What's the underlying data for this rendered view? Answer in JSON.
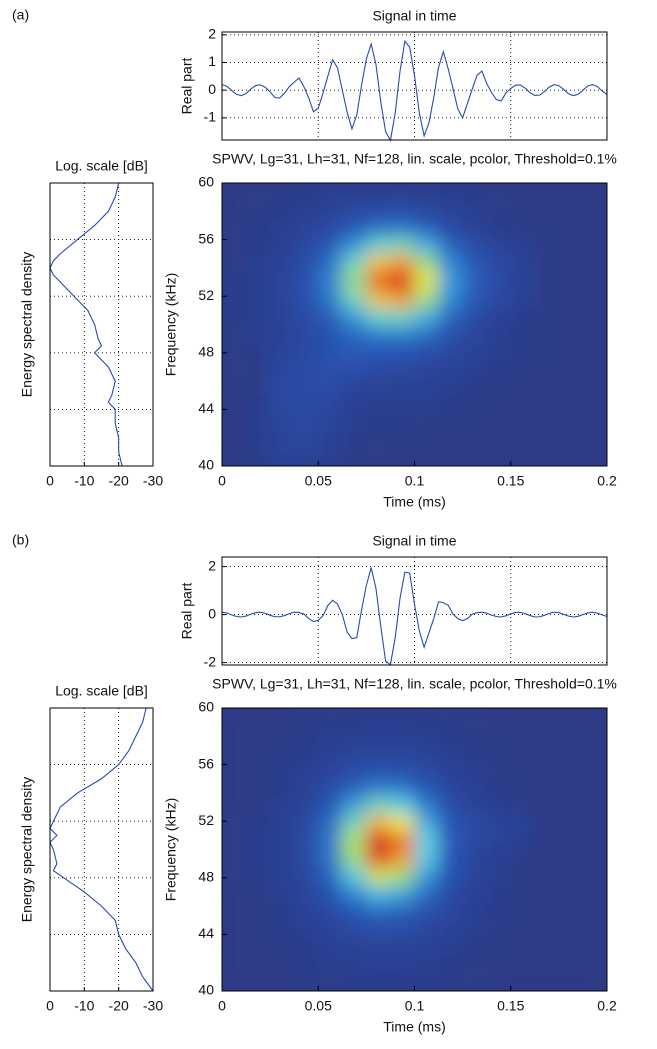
{
  "panel_labels": [
    "(a)",
    "(b)"
  ],
  "chart_data": [
    {
      "type": "line",
      "title": "Signal in time",
      "ylabel": "Real part",
      "color": "#2b4ab0",
      "grid": true,
      "xlim": [
        0,
        0.2
      ],
      "ylim": [
        -1.8,
        2.1
      ],
      "yticks": [
        -1,
        0,
        1,
        2
      ],
      "x": [
        0,
        0.0025,
        0.005,
        0.0075,
        0.01,
        0.0125,
        0.015,
        0.0175,
        0.02,
        0.0225,
        0.025,
        0.0275,
        0.03,
        0.0325,
        0.035,
        0.0375,
        0.04,
        0.0425,
        0.045,
        0.0475,
        0.05,
        0.0525,
        0.055,
        0.0575,
        0.06,
        0.0625,
        0.065,
        0.0675,
        0.07,
        0.0725,
        0.075,
        0.0775,
        0.08,
        0.0825,
        0.085,
        0.0875,
        0.09,
        0.0925,
        0.095,
        0.0975,
        0.1,
        0.1025,
        0.105,
        0.1075,
        0.11,
        0.1125,
        0.115,
        0.1175,
        0.12,
        0.1225,
        0.125,
        0.1275,
        0.13,
        0.1325,
        0.135,
        0.1375,
        0.14,
        0.1425,
        0.145,
        0.1475,
        0.15,
        0.1525,
        0.155,
        0.1575,
        0.16,
        0.1625,
        0.165,
        0.1675,
        0.17,
        0.1725,
        0.175,
        0.1775,
        0.18,
        0.1825,
        0.185,
        0.1875,
        0.19,
        0.1925,
        0.195,
        0.1975,
        0.2
      ],
      "values": [
        0.2,
        0.14,
        -0.01,
        -0.15,
        -0.2,
        -0.12,
        0.04,
        0.17,
        0.19,
        0.1,
        -0.06,
        -0.27,
        -0.28,
        -0.11,
        0.13,
        0.29,
        0.44,
        0.13,
        -0.27,
        -0.78,
        -0.65,
        -0.1,
        0.51,
        1.1,
        0.8,
        0,
        -0.8,
        -1.4,
        -0.9,
        0.18,
        1.13,
        1.67,
        0.92,
        -0.43,
        -1.5,
        -1.81,
        -0.82,
        0.7,
        1.77,
        1.55,
        0.53,
        -0.82,
        -1.65,
        -1.18,
        -0.27,
        0.83,
        1.39,
        0.77,
        0.06,
        -0.68,
        -1,
        -0.48,
        0.04,
        0.54,
        0.69,
        0.24,
        -0.08,
        -0.34,
        -0.39,
        -0.1,
        0.06,
        0.18,
        0.19,
        0.07,
        -0.09,
        -0.19,
        -0.18,
        -0.05,
        0.11,
        0.2,
        0.16,
        0.03,
        -0.13,
        -0.2,
        -0.15,
        0,
        0.15,
        0.2,
        0.13,
        -0.03,
        -0.16
      ]
    },
    {
      "type": "line",
      "title": "Log. scale [dB]",
      "ylabel": "Energy spectral density",
      "color": "#2b4ab0",
      "grid": true,
      "xlim": [
        0,
        -30
      ],
      "xticks": [
        0,
        -10,
        -20,
        -30
      ],
      "ylim": [
        40,
        60
      ],
      "y": [
        60,
        59,
        58,
        57,
        56,
        55,
        54.5,
        54,
        53.5,
        53,
        52,
        51,
        50,
        49,
        48.5,
        48,
        47.5,
        47,
        46,
        45,
        44.5,
        44,
        43,
        42,
        41,
        40
      ],
      "values": [
        -20,
        -19,
        -17,
        -13,
        -8,
        -3,
        -1,
        0,
        -1,
        -3,
        -7,
        -11,
        -13,
        -14,
        -15,
        -13,
        -15,
        -17,
        -19,
        -18,
        -17,
        -19,
        -19,
        -20,
        -20,
        -21
      ]
    },
    {
      "type": "heatmap",
      "title": "SPWV, Lg=31, Lh=31, Nf=128, lin. scale, pcolor, Threshold=0.1%",
      "xlabel": "Time (ms)",
      "ylabel": "Frequency (kHz)",
      "colormap": "jet",
      "grid": false,
      "xlim": [
        0,
        0.2
      ],
      "xticks": [
        0,
        0.05,
        0.1,
        0.15,
        0.2
      ],
      "ylim": [
        40,
        60
      ],
      "yticks": [
        40,
        44,
        48,
        52,
        56,
        60
      ],
      "xbins": [
        0,
        0.0125,
        0.025,
        0.0375,
        0.05,
        0.0625,
        0.075,
        0.0875,
        0.1,
        0.1125,
        0.125,
        0.1375,
        0.15,
        0.1625,
        0.175,
        0.1875,
        0.2
      ],
      "ybins": [
        40,
        41.25,
        42.5,
        43.75,
        45,
        46.25,
        47.5,
        48.75,
        50,
        51.25,
        52.5,
        53.75,
        55,
        56.25,
        57.5,
        58.75,
        60
      ],
      "z": [
        [
          0,
          0.02,
          0.06,
          0.07,
          0.04,
          0.01,
          0.01,
          0,
          0,
          0,
          0,
          0,
          0,
          0,
          0,
          0
        ],
        [
          0,
          0.02,
          0.07,
          0.08,
          0.05,
          0.02,
          0.01,
          0.01,
          0.01,
          0,
          0,
          0,
          0,
          0,
          0,
          0
        ],
        [
          0,
          0.02,
          0.08,
          0.09,
          0.07,
          0.03,
          0.02,
          0.02,
          0.01,
          0.01,
          0.01,
          0,
          0,
          0,
          0,
          0
        ],
        [
          0,
          0.02,
          0.09,
          0.1,
          0.09,
          0.04,
          0.03,
          0.03,
          0.03,
          0.02,
          0.01,
          0.01,
          0,
          0,
          0,
          0
        ],
        [
          0,
          0.01,
          0.1,
          0.11,
          0.12,
          0.07,
          0.06,
          0.05,
          0.05,
          0.03,
          0.02,
          0.01,
          0.01,
          0,
          0,
          0
        ],
        [
          0.01,
          0.01,
          0.08,
          0.11,
          0.13,
          0.14,
          0.09,
          0.09,
          0.07,
          0.05,
          0.04,
          0.02,
          0.01,
          0.01,
          0,
          0
        ],
        [
          0.01,
          0.02,
          0.07,
          0.1,
          0.15,
          0.18,
          0.17,
          0.16,
          0.13,
          0.09,
          0.05,
          0.03,
          0.02,
          0.01,
          0,
          0
        ],
        [
          0.01,
          0.03,
          0.05,
          0.09,
          0.15,
          0.23,
          0.3,
          0.32,
          0.25,
          0.14,
          0.08,
          0.04,
          0.02,
          0.01,
          0,
          0
        ],
        [
          0.02,
          0.03,
          0.06,
          0.11,
          0.2,
          0.39,
          0.57,
          0.6,
          0.45,
          0.24,
          0.11,
          0.05,
          0.02,
          0.01,
          0,
          0
        ],
        [
          0.02,
          0.03,
          0.06,
          0.13,
          0.28,
          0.59,
          0.91,
          0.98,
          0.71,
          0.34,
          0.18,
          0.1,
          0.05,
          0.01,
          0,
          0
        ],
        [
          0.02,
          0.03,
          0.07,
          0.14,
          0.31,
          0.68,
          1.07,
          1.17,
          0.83,
          0.39,
          0.2,
          0.11,
          0.05,
          0.01,
          0,
          0
        ],
        [
          0.01,
          0.03,
          0.05,
          0.11,
          0.26,
          0.58,
          0.91,
          0.98,
          0.7,
          0.33,
          0.18,
          0.1,
          0.05,
          0.01,
          0,
          0
        ],
        [
          0.01,
          0.02,
          0.04,
          0.09,
          0.18,
          0.37,
          0.56,
          0.61,
          0.44,
          0.21,
          0.12,
          0.06,
          0.03,
          0.01,
          0,
          0
        ],
        [
          0.01,
          0.02,
          0.03,
          0.06,
          0.1,
          0.17,
          0.25,
          0.27,
          0.2,
          0.11,
          0.05,
          0.02,
          0.01,
          0.01,
          0,
          0
        ],
        [
          0,
          0.01,
          0.02,
          0.03,
          0.05,
          0.09,
          0.1,
          0.11,
          0.08,
          0.05,
          0.03,
          0.01,
          0.01,
          0,
          0,
          0
        ],
        [
          0,
          0.01,
          0.01,
          0.02,
          0.03,
          0.04,
          0.04,
          0.04,
          0.03,
          0.02,
          0.02,
          0.01,
          0,
          0,
          0,
          0
        ]
      ]
    },
    {
      "type": "line",
      "title": "Signal in time",
      "ylabel": "Real part",
      "color": "#2b4ab0",
      "grid": true,
      "xlim": [
        0,
        0.2
      ],
      "ylim": [
        -2.1,
        2.4
      ],
      "yticks": [
        -2,
        0,
        2
      ],
      "x": [
        0,
        0.0025,
        0.005,
        0.0075,
        0.01,
        0.0125,
        0.015,
        0.0175,
        0.02,
        0.0225,
        0.025,
        0.0275,
        0.03,
        0.0325,
        0.035,
        0.0375,
        0.04,
        0.0425,
        0.045,
        0.0475,
        0.05,
        0.0525,
        0.055,
        0.0575,
        0.06,
        0.0625,
        0.065,
        0.0675,
        0.07,
        0.0725,
        0.075,
        0.0775,
        0.08,
        0.0825,
        0.085,
        0.0875,
        0.09,
        0.0925,
        0.095,
        0.0975,
        0.1,
        0.1025,
        0.105,
        0.1075,
        0.11,
        0.1125,
        0.115,
        0.1175,
        0.12,
        0.1225,
        0.125,
        0.1275,
        0.13,
        0.1325,
        0.135,
        0.1375,
        0.14,
        0.1425,
        0.145,
        0.1475,
        0.15,
        0.1525,
        0.155,
        0.1575,
        0.16,
        0.1625,
        0.165,
        0.1675,
        0.17,
        0.1725,
        0.175,
        0.1775,
        0.18,
        0.1825,
        0.185,
        0.1875,
        0.19,
        0.1925,
        0.195,
        0.1975,
        0.2
      ],
      "values": [
        0.1,
        0.07,
        -0.01,
        -0.08,
        -0.1,
        -0.06,
        0.02,
        0.08,
        0.1,
        0.05,
        -0.03,
        -0.09,
        -0.09,
        -0.04,
        0.04,
        0.1,
        0.09,
        0.03,
        -0.16,
        -0.29,
        -0.24,
        -0.04,
        0.38,
        0.6,
        0.44,
        0,
        -0.73,
        -1,
        -0.96,
        0.2,
        1.22,
        1.96,
        1.08,
        -0.5,
        -1.94,
        -2.09,
        -0.95,
        0.7,
        1.77,
        1.73,
        0.43,
        -0.67,
        -1.36,
        -0.76,
        -0.17,
        0.53,
        0.5,
        0.39,
        0.03,
        -0.17,
        -0.25,
        -0.17,
        0.02,
        0.08,
        0.1,
        0.06,
        -0.02,
        -0.08,
        -0.1,
        -0.05,
        0.03,
        0.09,
        0.09,
        0.04,
        -0.04,
        -0.1,
        -0.09,
        -0.03,
        0.05,
        0.1,
        0.08,
        0.01,
        -0.06,
        -0.1,
        -0.07,
        0,
        0.07,
        0.1,
        0.06,
        -0.01,
        -0.08
      ]
    },
    {
      "type": "line",
      "title": "Log. scale [dB]",
      "ylabel": "Energy spectral density",
      "color": "#2b4ab0",
      "grid": true,
      "xlim": [
        0,
        -30
      ],
      "xticks": [
        0,
        -10,
        -20,
        -30
      ],
      "ylim": [
        40,
        60
      ],
      "y": [
        60,
        59,
        58,
        57,
        56,
        55,
        54,
        53,
        52,
        51.5,
        51,
        50.5,
        50,
        49,
        48.5,
        48,
        47,
        46,
        45,
        44,
        43,
        42,
        41,
        40
      ],
      "values": [
        -28,
        -27,
        -25,
        -23,
        -20,
        -15,
        -8,
        -3,
        -1,
        0,
        -2,
        0,
        -1,
        -2,
        -1,
        -4,
        -10,
        -15,
        -19,
        -20,
        -22,
        -25,
        -27,
        -30
      ]
    },
    {
      "type": "heatmap",
      "title": "SPWV, Lg=31, Lh=31, Nf=128, lin. scale, pcolor, Threshold=0.1%",
      "xlabel": "Time (ms)",
      "ylabel": "Frequency (kHz)",
      "colormap": "jet",
      "grid": false,
      "xlim": [
        0,
        0.2
      ],
      "xticks": [
        0,
        0.05,
        0.1,
        0.15,
        0.2
      ],
      "ylim": [
        40,
        60
      ],
      "yticks": [
        40,
        44,
        48,
        52,
        56,
        60
      ],
      "xbins": [
        0,
        0.0125,
        0.025,
        0.0375,
        0.05,
        0.0625,
        0.075,
        0.0875,
        0.1,
        0.1125,
        0.125,
        0.1375,
        0.15,
        0.1625,
        0.175,
        0.1875,
        0.2
      ],
      "ybins": [
        40,
        41.25,
        42.5,
        43.75,
        45,
        46.25,
        47.5,
        48.75,
        50,
        51.25,
        52.5,
        53.75,
        55,
        56.25,
        57.5,
        58.75,
        60
      ],
      "z": [
        [
          0,
          0,
          0,
          0.01,
          0.01,
          0.02,
          0.02,
          0.02,
          0.02,
          0.01,
          0.01,
          0,
          0,
          0,
          0,
          0
        ],
        [
          0,
          0,
          0.01,
          0.02,
          0.03,
          0.03,
          0.04,
          0.04,
          0.03,
          0.02,
          0.01,
          0.01,
          0,
          0,
          0,
          0
        ],
        [
          0,
          0.01,
          0.01,
          0.02,
          0.04,
          0.05,
          0.06,
          0.06,
          0.05,
          0.03,
          0.02,
          0.01,
          0,
          0,
          0,
          0
        ],
        [
          0,
          0.01,
          0.02,
          0.04,
          0.06,
          0.1,
          0.12,
          0.11,
          0.08,
          0.05,
          0.03,
          0.01,
          0.01,
          0,
          0,
          0
        ],
        [
          0,
          0.01,
          0.02,
          0.05,
          0.1,
          0.17,
          0.22,
          0.2,
          0.14,
          0.08,
          0.04,
          0.02,
          0.01,
          0,
          0,
          0
        ],
        [
          0,
          0.01,
          0.03,
          0.07,
          0.15,
          0.31,
          0.45,
          0.4,
          0.23,
          0.1,
          0.05,
          0.02,
          0.01,
          0,
          0,
          0
        ],
        [
          0.01,
          0.02,
          0.04,
          0.08,
          0.21,
          0.5,
          0.77,
          0.69,
          0.37,
          0.15,
          0.07,
          0.03,
          0.01,
          0,
          0,
          0
        ],
        [
          0.01,
          0.02,
          0.04,
          0.1,
          0.26,
          0.69,
          1.08,
          0.96,
          0.5,
          0.17,
          0.07,
          0.03,
          0.01,
          0,
          0,
          0
        ],
        [
          0.01,
          0.02,
          0.04,
          0.1,
          0.27,
          0.72,
          1.15,
          1.02,
          0.53,
          0.18,
          0.1,
          0.06,
          0.03,
          0,
          0,
          0
        ],
        [
          0.01,
          0.02,
          0.04,
          0.09,
          0.24,
          0.59,
          0.92,
          0.83,
          0.43,
          0.16,
          0.11,
          0.07,
          0.05,
          0,
          0,
          0
        ],
        [
          0,
          0.01,
          0.03,
          0.07,
          0.17,
          0.39,
          0.59,
          0.53,
          0.29,
          0.12,
          0.05,
          0.02,
          0.01,
          0,
          0,
          0
        ],
        [
          0,
          0.01,
          0.02,
          0.05,
          0.11,
          0.21,
          0.29,
          0.27,
          0.17,
          0.08,
          0.04,
          0.02,
          0.01,
          0,
          0,
          0
        ],
        [
          0,
          0.01,
          0.02,
          0.04,
          0.07,
          0.11,
          0.14,
          0.13,
          0.09,
          0.05,
          0.03,
          0.01,
          0.01,
          0,
          0,
          0
        ],
        [
          0,
          0.01,
          0.01,
          0.02,
          0.04,
          0.06,
          0.07,
          0.07,
          0.05,
          0.03,
          0.02,
          0.01,
          0,
          0,
          0,
          0
        ],
        [
          0,
          0,
          0.01,
          0.02,
          0.03,
          0.03,
          0.04,
          0.04,
          0.03,
          0.02,
          0.01,
          0.01,
          0,
          0,
          0,
          0
        ],
        [
          0,
          0,
          0,
          0.01,
          0.01,
          0.02,
          0.02,
          0.02,
          0.02,
          0.01,
          0.01,
          0,
          0,
          0,
          0,
          0
        ]
      ]
    }
  ]
}
